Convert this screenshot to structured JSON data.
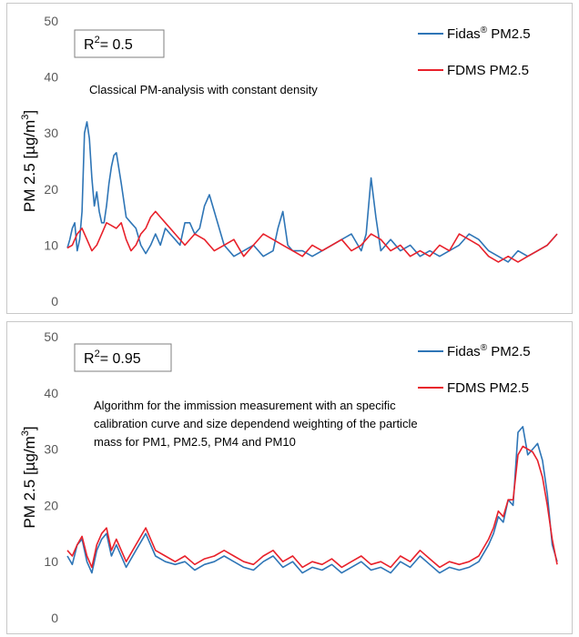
{
  "chart_data": [
    {
      "type": "line",
      "ylabel": "PM 2.5 [µg/m³]",
      "ylabel_main": "PM 2.5 [µg/m",
      "ylabel_sup": "3",
      "ylabel_end": "]",
      "ylim": [
        0,
        50
      ],
      "yticks": [
        "0",
        "10",
        "20",
        "30",
        "40",
        "50"
      ],
      "grid": false,
      "legend_position": "top-right",
      "r2_label": "R",
      "r2_sup": "2",
      "r2_value": "= 0.5",
      "annotation": [
        "Classical PM-analysis with constant density"
      ],
      "series": [
        {
          "name": "Fidas® PM2.5",
          "name_main": "Fidas",
          "name_sup": "®",
          "name_end": " PM2.5",
          "color": "#2e75b6",
          "x": [
            0,
            0.5,
            1,
            1.5,
            2,
            2.5,
            3,
            3.5,
            4,
            4.5,
            5,
            5.5,
            6,
            6.5,
            7,
            7.5,
            8,
            8.5,
            9,
            9.5,
            10,
            11,
            12,
            13,
            14,
            15,
            16,
            17,
            18,
            19,
            20,
            21,
            22,
            23,
            24,
            25,
            26,
            27,
            28,
            29,
            30,
            32,
            34,
            36,
            38,
            40,
            42,
            43,
            44,
            45,
            46,
            48,
            50,
            52,
            54,
            56,
            58,
            60,
            61,
            62,
            63,
            64,
            65,
            66,
            68,
            70,
            72,
            74,
            76,
            78,
            80,
            82,
            84,
            86,
            88,
            90,
            92,
            94,
            96,
            98,
            100
          ],
          "values": [
            9.5,
            11,
            13,
            14,
            9,
            11,
            16,
            30,
            32,
            29,
            22,
            17,
            19.5,
            16,
            14,
            14,
            17,
            21,
            24,
            26,
            26.5,
            21,
            15,
            14,
            13,
            10,
            8.5,
            10,
            12,
            10,
            13,
            12,
            11,
            10,
            14,
            14,
            12,
            13,
            17,
            19,
            16,
            10,
            8,
            9,
            10,
            8,
            9,
            13,
            16,
            10,
            9,
            9,
            8,
            9,
            10,
            11,
            12,
            9,
            12,
            22,
            15,
            9,
            10,
            11,
            9,
            10,
            8,
            9,
            8,
            9,
            10,
            12,
            11,
            9,
            8,
            7,
            9,
            8,
            9,
            10,
            12
          ]
        },
        {
          "name": "FDMS PM2.5",
          "color": "#e8212b",
          "x": [
            0,
            1,
            2,
            3,
            4,
            5,
            6,
            7,
            8,
            9,
            10,
            11,
            12,
            13,
            14,
            15,
            16,
            17,
            18,
            19,
            20,
            22,
            24,
            26,
            28,
            30,
            32,
            34,
            36,
            38,
            40,
            42,
            44,
            46,
            48,
            50,
            52,
            54,
            56,
            58,
            60,
            62,
            64,
            66,
            68,
            70,
            72,
            74,
            76,
            78,
            80,
            82,
            84,
            86,
            88,
            90,
            92,
            94,
            96,
            98,
            100
          ],
          "values": [
            9.5,
            10,
            12,
            13,
            11,
            9,
            10,
            12,
            14,
            13.5,
            13,
            14,
            11,
            9,
            10,
            12,
            13,
            15,
            16,
            15,
            14,
            12,
            10,
            12,
            11,
            9,
            10,
            11,
            8,
            10,
            12,
            11,
            10,
            9,
            8,
            10,
            9,
            10,
            11,
            9,
            10,
            12,
            11,
            9,
            10,
            8,
            9,
            8,
            10,
            9,
            12,
            11,
            10,
            8,
            7,
            8,
            7,
            8,
            9,
            10,
            12
          ]
        }
      ]
    },
    {
      "type": "line",
      "ylabel": "PM 2.5 [µg/m³]",
      "ylabel_main": "PM 2.5 [µg/m",
      "ylabel_sup": "3",
      "ylabel_end": "]",
      "ylim": [
        0,
        50
      ],
      "yticks": [
        "0",
        "10",
        "20",
        "30",
        "40",
        "50"
      ],
      "grid": false,
      "legend_position": "top-right",
      "r2_label": "R",
      "r2_sup": "2",
      "r2_value": "= 0.95",
      "annotation": [
        "Algorithm for the immission measurement with an specific",
        "calibration curve and size dependend weighting of the particle",
        "mass for PM1, PM2.5, PM4 and PM10"
      ],
      "series": [
        {
          "name": "Fidas® PM2.5",
          "name_main": "Fidas",
          "name_sup": "®",
          "name_end": " PM2.5",
          "color": "#2e75b6",
          "x": [
            0,
            1,
            2,
            3,
            4,
            5,
            6,
            7,
            8,
            9,
            10,
            12,
            14,
            16,
            18,
            20,
            22,
            24,
            26,
            28,
            30,
            32,
            34,
            36,
            38,
            40,
            42,
            44,
            46,
            48,
            50,
            52,
            54,
            56,
            58,
            60,
            62,
            64,
            66,
            68,
            70,
            72,
            74,
            76,
            78,
            80,
            82,
            84,
            86,
            87,
            88,
            89,
            90,
            91,
            92,
            93,
            94,
            95,
            96,
            97,
            98,
            99,
            100
          ],
          "values": [
            11,
            9.5,
            13,
            14,
            10,
            8,
            12,
            14,
            15,
            11,
            13,
            9,
            12,
            15,
            11,
            10,
            9.5,
            10,
            8.5,
            9.5,
            10,
            11,
            10,
            9,
            8.5,
            10,
            11,
            9,
            10,
            8,
            9,
            8.5,
            9.5,
            8,
            9,
            10,
            8.5,
            9,
            8,
            10,
            9,
            11,
            9.5,
            8,
            9,
            8.5,
            9,
            10,
            13,
            15,
            18,
            17,
            21,
            20,
            33,
            34,
            29,
            30,
            31,
            28,
            22,
            13,
            10
          ]
        },
        {
          "name": "FDMS PM2.5",
          "color": "#e8212b",
          "x": [
            0,
            1,
            2,
            3,
            4,
            5,
            6,
            7,
            8,
            9,
            10,
            12,
            14,
            16,
            18,
            20,
            22,
            24,
            26,
            28,
            30,
            32,
            34,
            36,
            38,
            40,
            42,
            44,
            46,
            48,
            50,
            52,
            54,
            56,
            58,
            60,
            62,
            64,
            66,
            68,
            70,
            72,
            74,
            76,
            78,
            80,
            82,
            84,
            86,
            87,
            88,
            89,
            90,
            91,
            92,
            93,
            94,
            95,
            96,
            97,
            98,
            99,
            100
          ],
          "values": [
            12,
            11,
            13,
            14.5,
            11,
            9,
            13,
            15,
            16,
            12,
            14,
            10,
            13,
            16,
            12,
            11,
            10,
            11,
            9.5,
            10.5,
            11,
            12,
            11,
            10,
            9.5,
            11,
            12,
            10,
            11,
            9,
            10,
            9.5,
            10.5,
            9,
            10,
            11,
            9.5,
            10,
            9,
            11,
            10,
            12,
            10.5,
            9,
            10,
            9.5,
            10,
            11,
            14,
            16,
            19,
            18,
            21,
            21,
            29,
            30.5,
            30,
            29.5,
            28,
            25,
            20,
            14,
            9.5
          ]
        }
      ]
    }
  ]
}
